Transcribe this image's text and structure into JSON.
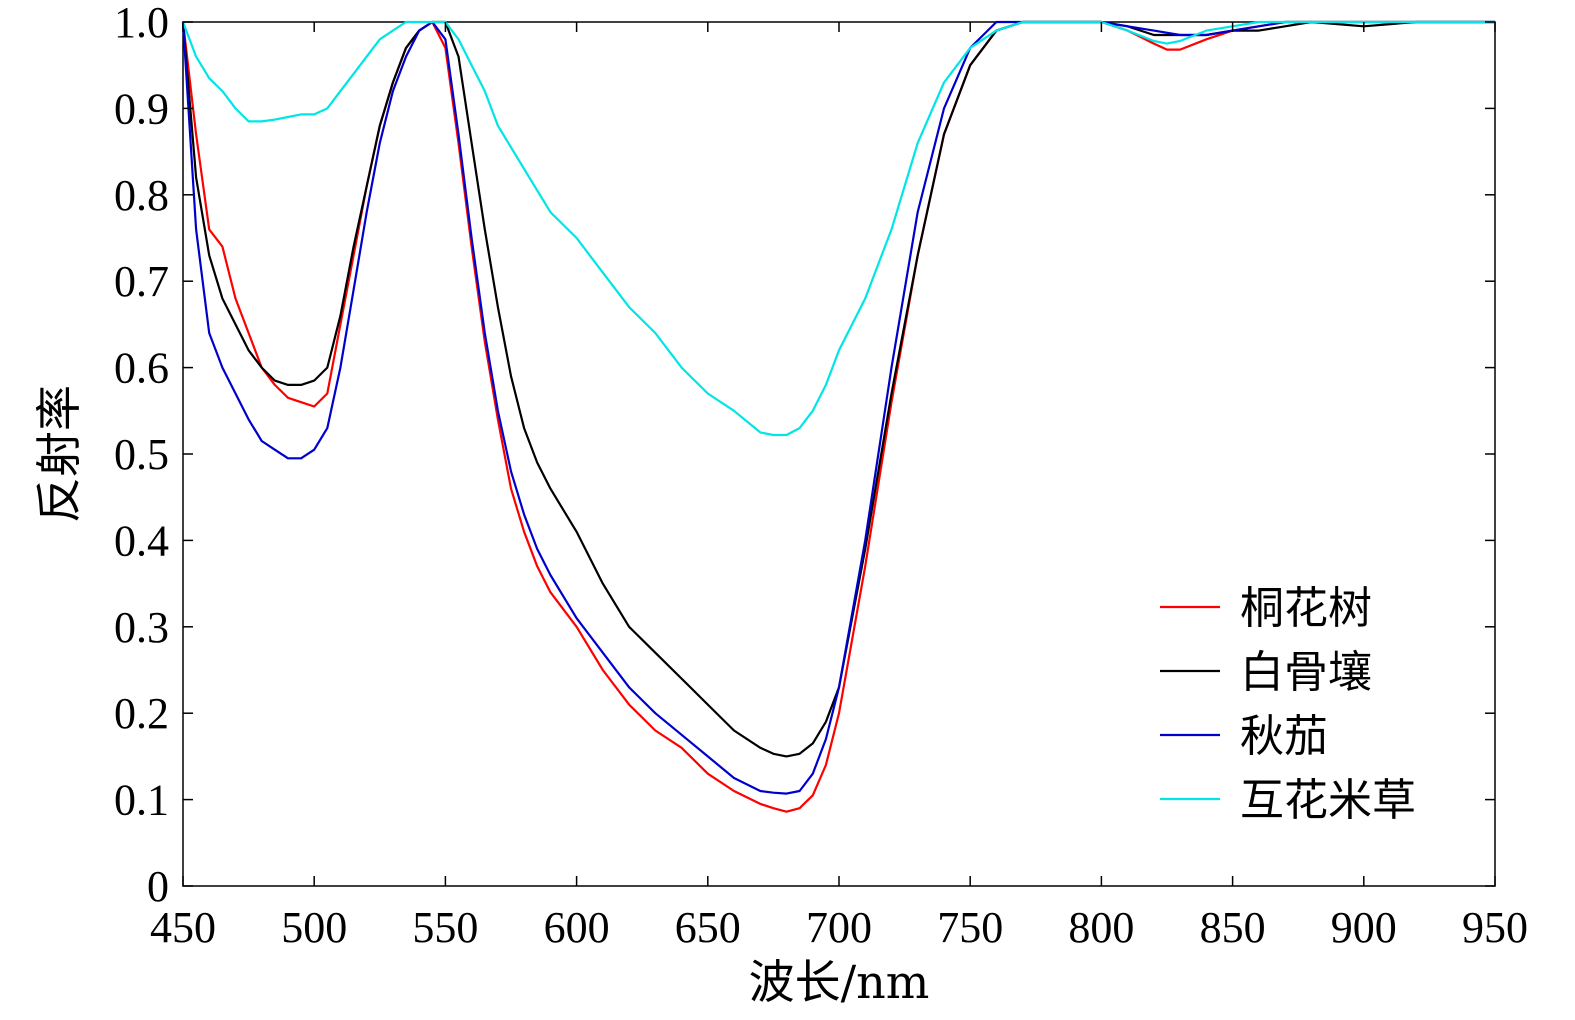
{
  "chart_data": {
    "type": "line",
    "title": "",
    "xlabel": "波长/nm",
    "ylabel": "反射率",
    "xlim": [
      450,
      950
    ],
    "ylim": [
      0,
      1.0
    ],
    "x_ticks": [
      "450",
      "500",
      "550",
      "600",
      "650",
      "700",
      "750",
      "800",
      "850",
      "900",
      "950"
    ],
    "y_ticks": [
      "0",
      "0.1",
      "0.2",
      "0.3",
      "0.4",
      "0.5",
      "0.6",
      "0.7",
      "0.8",
      "0.9",
      "1.0"
    ],
    "grid": false,
    "legend_position": "lower-right",
    "series": [
      {
        "name": "桐花树",
        "color": "#ff0000",
        "x": [
          450,
          455,
          460,
          465,
          470,
          475,
          480,
          485,
          490,
          495,
          500,
          505,
          510,
          515,
          520,
          525,
          530,
          535,
          540,
          545,
          550,
          555,
          560,
          565,
          570,
          575,
          580,
          585,
          590,
          600,
          610,
          620,
          630,
          640,
          650,
          660,
          670,
          675,
          680,
          685,
          690,
          695,
          700,
          710,
          720,
          730,
          740,
          750,
          760,
          770,
          780,
          800,
          810,
          820,
          825,
          830,
          840,
          850,
          860,
          870,
          880,
          900,
          920,
          950
        ],
        "y": [
          1.0,
          0.87,
          0.76,
          0.74,
          0.68,
          0.64,
          0.6,
          0.58,
          0.565,
          0.56,
          0.555,
          0.57,
          0.65,
          0.73,
          0.81,
          0.88,
          0.93,
          0.97,
          0.99,
          1.0,
          0.97,
          0.86,
          0.74,
          0.63,
          0.54,
          0.46,
          0.41,
          0.37,
          0.34,
          0.3,
          0.25,
          0.21,
          0.18,
          0.16,
          0.13,
          0.11,
          0.095,
          0.09,
          0.086,
          0.09,
          0.105,
          0.14,
          0.2,
          0.37,
          0.56,
          0.73,
          0.87,
          0.95,
          0.99,
          1.0,
          1.0,
          1.0,
          0.99,
          0.975,
          0.968,
          0.968,
          0.98,
          0.99,
          0.995,
          1.0,
          1.0,
          1.0,
          1.0,
          1.0
        ]
      },
      {
        "name": "白骨壤",
        "color": "#000000",
        "x": [
          450,
          455,
          460,
          465,
          470,
          475,
          480,
          485,
          490,
          495,
          500,
          505,
          510,
          515,
          520,
          525,
          530,
          535,
          540,
          545,
          550,
          555,
          560,
          565,
          570,
          575,
          580,
          585,
          590,
          600,
          610,
          620,
          630,
          640,
          650,
          660,
          670,
          675,
          680,
          685,
          690,
          695,
          700,
          710,
          720,
          730,
          740,
          750,
          760,
          770,
          780,
          800,
          810,
          820,
          830,
          840,
          850,
          860,
          870,
          880,
          900,
          920,
          950
        ],
        "y": [
          1.0,
          0.82,
          0.73,
          0.68,
          0.65,
          0.62,
          0.6,
          0.585,
          0.58,
          0.58,
          0.585,
          0.6,
          0.66,
          0.74,
          0.81,
          0.88,
          0.93,
          0.97,
          0.99,
          1.0,
          1.0,
          0.96,
          0.86,
          0.76,
          0.67,
          0.59,
          0.53,
          0.49,
          0.46,
          0.41,
          0.35,
          0.3,
          0.27,
          0.24,
          0.21,
          0.18,
          0.16,
          0.153,
          0.15,
          0.153,
          0.165,
          0.19,
          0.23,
          0.39,
          0.57,
          0.73,
          0.87,
          0.95,
          0.99,
          1.0,
          1.0,
          1.0,
          0.995,
          0.985,
          0.985,
          0.985,
          0.99,
          0.99,
          0.995,
          1.0,
          0.995,
          1.0,
          1.0
        ]
      },
      {
        "name": "秋茄",
        "color": "#0000cc",
        "x": [
          450,
          455,
          460,
          465,
          470,
          475,
          480,
          485,
          490,
          495,
          500,
          505,
          510,
          515,
          520,
          525,
          530,
          535,
          540,
          545,
          550,
          555,
          560,
          565,
          570,
          575,
          580,
          585,
          590,
          600,
          610,
          620,
          630,
          640,
          650,
          660,
          670,
          675,
          680,
          685,
          690,
          695,
          700,
          710,
          720,
          730,
          740,
          750,
          760,
          770,
          780,
          800,
          810,
          820,
          830,
          840,
          850,
          860,
          870,
          880,
          900,
          920,
          950
        ],
        "y": [
          1.0,
          0.76,
          0.64,
          0.6,
          0.57,
          0.54,
          0.515,
          0.505,
          0.495,
          0.495,
          0.505,
          0.53,
          0.6,
          0.69,
          0.78,
          0.86,
          0.92,
          0.96,
          0.99,
          1.0,
          0.98,
          0.87,
          0.75,
          0.64,
          0.55,
          0.48,
          0.43,
          0.39,
          0.36,
          0.31,
          0.27,
          0.23,
          0.2,
          0.175,
          0.15,
          0.125,
          0.11,
          0.108,
          0.107,
          0.11,
          0.13,
          0.17,
          0.23,
          0.4,
          0.6,
          0.78,
          0.9,
          0.97,
          1.0,
          1.0,
          1.0,
          1.0,
          0.995,
          0.99,
          0.985,
          0.985,
          0.99,
          0.995,
          1.0,
          1.0,
          1.0,
          1.0,
          1.0
        ]
      },
      {
        "name": "互花米草",
        "color": "#00e5e5",
        "x": [
          450,
          455,
          460,
          465,
          470,
          475,
          480,
          485,
          490,
          495,
          500,
          505,
          510,
          515,
          520,
          525,
          530,
          535,
          540,
          545,
          550,
          555,
          560,
          565,
          570,
          580,
          590,
          600,
          610,
          620,
          630,
          640,
          650,
          660,
          670,
          675,
          680,
          685,
          690,
          695,
          700,
          710,
          720,
          730,
          740,
          750,
          760,
          770,
          780,
          800,
          810,
          820,
          825,
          830,
          840,
          850,
          860,
          870,
          880,
          900,
          920,
          950
        ],
        "y": [
          1.0,
          0.96,
          0.935,
          0.92,
          0.9,
          0.885,
          0.885,
          0.887,
          0.89,
          0.893,
          0.893,
          0.9,
          0.92,
          0.94,
          0.96,
          0.98,
          0.99,
          1.0,
          1.0,
          1.0,
          1.0,
          0.98,
          0.95,
          0.92,
          0.88,
          0.83,
          0.78,
          0.75,
          0.71,
          0.67,
          0.64,
          0.6,
          0.57,
          0.55,
          0.525,
          0.522,
          0.522,
          0.53,
          0.55,
          0.58,
          0.62,
          0.68,
          0.76,
          0.86,
          0.93,
          0.97,
          0.99,
          1.0,
          1.0,
          1.0,
          0.99,
          0.978,
          0.975,
          0.978,
          0.99,
          0.995,
          1.0,
          1.0,
          1.0,
          1.0,
          1.0,
          1.0
        ]
      }
    ]
  }
}
